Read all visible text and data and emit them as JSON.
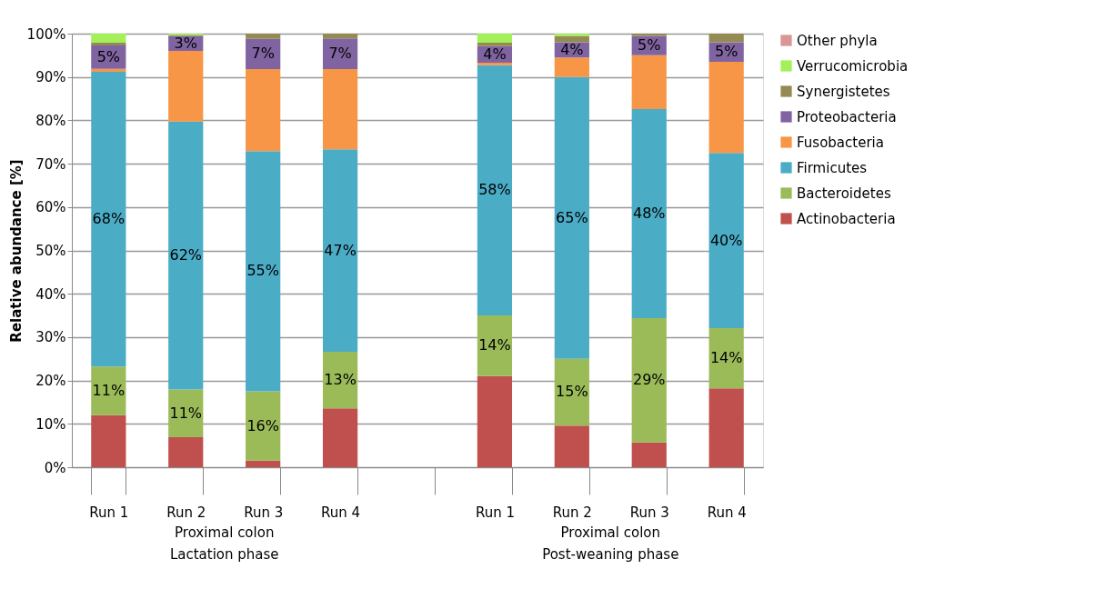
{
  "chart_data": {
    "type": "bar",
    "stacked": true,
    "ylabel": "Relative abundance [%]",
    "categories": [
      "Run 1",
      "Run 2",
      "Run 3",
      "Run 4",
      null,
      "Run 1",
      "Run 2",
      "Run 3",
      "Run 4"
    ],
    "series": [
      {
        "name": "Actinobacteria",
        "color": "#c0504d",
        "values": [
          12.0,
          6.9,
          1.5,
          13.6,
          null,
          21.0,
          9.6,
          5.7,
          18.2
        ]
      },
      {
        "name": "Bacteroidetes",
        "color": "#9bbb59",
        "values": [
          11.2,
          11.0,
          16.0,
          13.0,
          null,
          14.0,
          15.4,
          28.7,
          13.9
        ],
        "value_labels": [
          "11%",
          "11%",
          "16%",
          "13%",
          null,
          "14%",
          "15%",
          "29%",
          "14%"
        ]
      },
      {
        "name": "Firmicutes",
        "color": "#4bacc6",
        "values": [
          68.0,
          61.8,
          55.4,
          46.7,
          null,
          57.7,
          65.0,
          48.2,
          40.4
        ],
        "value_labels": [
          "68%",
          "62%",
          "55%",
          "47%",
          null,
          "58%",
          "65%",
          "48%",
          "40%"
        ]
      },
      {
        "name": "Fusobacteria",
        "color": "#f79646",
        "values": [
          0.7,
          16.3,
          18.9,
          18.5,
          null,
          0.6,
          4.5,
          12.4,
          21.0
        ]
      },
      {
        "name": "Proteobacteria",
        "color": "#8064a2",
        "values": [
          5.4,
          3.4,
          7.0,
          7.1,
          null,
          3.8,
          3.5,
          4.5,
          4.5
        ],
        "value_labels": [
          "5%",
          "3%",
          "7%",
          "7%",
          null,
          "4%",
          "4%",
          "5%",
          "5%"
        ]
      },
      {
        "name": "Synergistetes",
        "color": "#948a54",
        "values": [
          0.6,
          0.3,
          1.2,
          1.1,
          null,
          0.8,
          1.5,
          0.5,
          2.0
        ]
      },
      {
        "name": "Verrucomicrobia",
        "color": "#a3f05a",
        "values": [
          2.1,
          0.3,
          0.0,
          0.0,
          null,
          2.1,
          0.5,
          0.0,
          0.0
        ]
      },
      {
        "name": "Other phyla",
        "color": "#d99694",
        "values": [
          0.0,
          0.0,
          0.0,
          0.0,
          null,
          0.0,
          0.0,
          0.0,
          0.0
        ]
      }
    ],
    "ylim": [
      0,
      100
    ],
    "yticks": [
      {
        "value": 0,
        "label": "0%"
      },
      {
        "value": 10,
        "label": "10%"
      },
      {
        "value": 20,
        "label": "20%"
      },
      {
        "value": 30,
        "label": "30%"
      },
      {
        "value": 40,
        "label": "40%"
      },
      {
        "value": 50,
        "label": "50%"
      },
      {
        "value": 60,
        "label": "60%"
      },
      {
        "value": 70,
        "label": "70%"
      },
      {
        "value": 80,
        "label": "80%"
      },
      {
        "value": 90,
        "label": "90%"
      },
      {
        "value": 100,
        "label": "100%"
      }
    ],
    "grid": "y",
    "legend": "right",
    "annotations": [
      "Proximal colon\nLactation phase",
      "Proximal colon\nPost-weaning phase"
    ]
  }
}
